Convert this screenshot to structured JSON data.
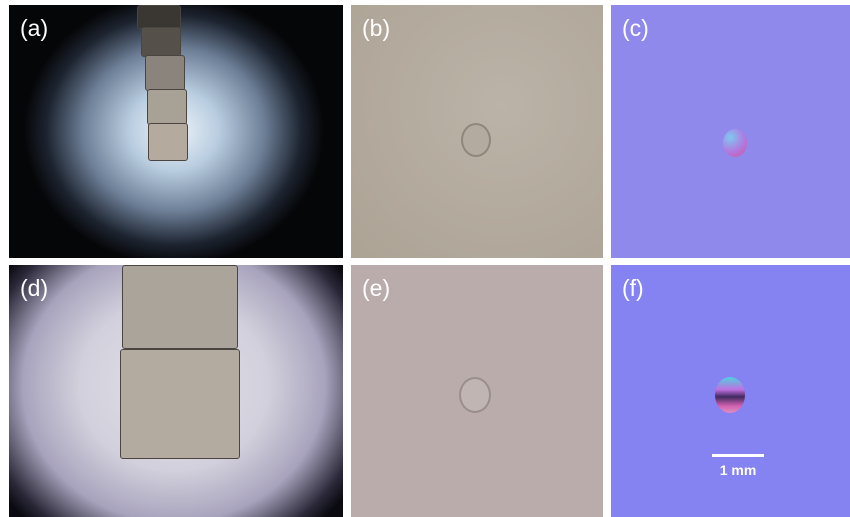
{
  "panels": [
    {
      "label": "(a)"
    },
    {
      "label": "(b)"
    },
    {
      "label": "(c)"
    },
    {
      "label": "(d)"
    },
    {
      "label": "(e)"
    },
    {
      "label": "(f)"
    }
  ],
  "scale_bar": {
    "label": "1 mm"
  }
}
